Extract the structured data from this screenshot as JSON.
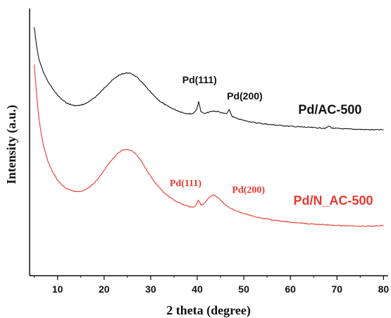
{
  "chart_data": {
    "type": "line",
    "xlabel": "2 theta (degree)",
    "ylabel": "Intensity (a.u.)",
    "xlim": [
      4,
      81
    ],
    "ylim": [
      0,
      100
    ],
    "x_ticks": [
      10,
      20,
      30,
      40,
      50,
      60,
      70,
      80
    ],
    "y_ticks_shown": false,
    "grid": false,
    "colors": {
      "black_series": "#111111",
      "red_series": "#e8392f"
    },
    "series": [
      {
        "name": "Pd/AC-500",
        "color": "#111111",
        "points": [
          [
            5,
            93
          ],
          [
            5.5,
            86
          ],
          [
            6,
            81
          ],
          [
            7,
            76
          ],
          [
            8,
            72.5
          ],
          [
            9,
            69.8
          ],
          [
            10,
            67.6
          ],
          [
            11,
            65.8
          ],
          [
            12,
            64.6
          ],
          [
            13,
            63.9
          ],
          [
            14,
            63.6
          ],
          [
            15,
            63.8
          ],
          [
            16,
            64.4
          ],
          [
            17,
            65.4
          ],
          [
            18,
            66.7
          ],
          [
            19,
            68.3
          ],
          [
            20,
            70.1
          ],
          [
            21,
            71.9
          ],
          [
            22,
            73.5
          ],
          [
            23,
            74.8
          ],
          [
            24,
            75.6
          ],
          [
            25,
            75.9
          ],
          [
            26,
            75.5
          ],
          [
            27,
            74.3
          ],
          [
            28,
            72.6
          ],
          [
            29,
            70.6
          ],
          [
            30,
            68.6
          ],
          [
            31,
            66.8
          ],
          [
            32,
            65.3
          ],
          [
            33,
            64.1
          ],
          [
            34,
            63.1
          ],
          [
            35,
            62.3
          ],
          [
            36,
            61.6
          ],
          [
            37,
            61.0
          ],
          [
            38,
            60.6
          ],
          [
            39,
            60.6
          ],
          [
            39.8,
            62.0
          ],
          [
            40.3,
            65.0
          ],
          [
            40.8,
            61.5
          ],
          [
            41.5,
            60.6
          ],
          [
            42.5,
            61.2
          ],
          [
            43.5,
            61.6
          ],
          [
            44.5,
            61.4
          ],
          [
            45.5,
            60.8
          ],
          [
            46.3,
            60.6
          ],
          [
            46.9,
            62.0
          ],
          [
            47.5,
            59.6
          ],
          [
            48.5,
            58.8
          ],
          [
            50,
            58.1
          ],
          [
            52,
            57.4
          ],
          [
            54,
            56.9
          ],
          [
            56,
            56.5
          ],
          [
            58,
            56.2
          ],
          [
            60,
            55.9
          ],
          [
            62,
            55.7
          ],
          [
            64,
            55.5
          ],
          [
            66,
            55.3
          ],
          [
            67.6,
            55.2
          ],
          [
            68.3,
            56.0
          ],
          [
            69,
            55.2
          ],
          [
            70,
            55.1
          ],
          [
            72,
            54.9
          ],
          [
            74,
            54.8
          ],
          [
            76,
            54.7
          ],
          [
            78,
            54.6
          ],
          [
            80,
            54.6
          ]
        ]
      },
      {
        "name": "Pd/N_AC-500",
        "color": "#e8392f",
        "points": [
          [
            5,
            79
          ],
          [
            5.5,
            68
          ],
          [
            6,
            59
          ],
          [
            6.5,
            53
          ],
          [
            7,
            48.5
          ],
          [
            8,
            42.5
          ],
          [
            9,
            38.6
          ],
          [
            10,
            35.8
          ],
          [
            11,
            33.8
          ],
          [
            12,
            32.5
          ],
          [
            13,
            31.8
          ],
          [
            14,
            31.5
          ],
          [
            15,
            31.6
          ],
          [
            16,
            32.2
          ],
          [
            17,
            33.3
          ],
          [
            18,
            34.9
          ],
          [
            19,
            37.0
          ],
          [
            20,
            39.4
          ],
          [
            21,
            41.9
          ],
          [
            22,
            44.1
          ],
          [
            23,
            45.9
          ],
          [
            24,
            47.0
          ],
          [
            25,
            47.3
          ],
          [
            26,
            46.8
          ],
          [
            27,
            45.2
          ],
          [
            28,
            42.8
          ],
          [
            29,
            40.0
          ],
          [
            30,
            37.2
          ],
          [
            31,
            34.7
          ],
          [
            32,
            32.6
          ],
          [
            33,
            30.8
          ],
          [
            34,
            29.4
          ],
          [
            35,
            28.3
          ],
          [
            36,
            27.4
          ],
          [
            37,
            26.6
          ],
          [
            38,
            26.0
          ],
          [
            39,
            25.6
          ],
          [
            39.6,
            26.0
          ],
          [
            40.2,
            28.3
          ],
          [
            40.8,
            26.4
          ],
          [
            41.5,
            27.0
          ],
          [
            42.5,
            29.2
          ],
          [
            43.3,
            30.2
          ],
          [
            44,
            29.9
          ],
          [
            45,
            28.2
          ],
          [
            46,
            26.6
          ],
          [
            47,
            25.4
          ],
          [
            48,
            24.5
          ],
          [
            50,
            23.3
          ],
          [
            52,
            22.3
          ],
          [
            54,
            21.5
          ],
          [
            56,
            20.9
          ],
          [
            58,
            20.4
          ],
          [
            60,
            20.0
          ],
          [
            62,
            19.7
          ],
          [
            64,
            19.4
          ],
          [
            66,
            19.2
          ],
          [
            68,
            19.0
          ],
          [
            70,
            18.8
          ],
          [
            72,
            18.7
          ],
          [
            74,
            18.6
          ],
          [
            76,
            18.5
          ],
          [
            78,
            18.6
          ],
          [
            80,
            18.9
          ]
        ]
      }
    ],
    "annotations": [
      {
        "text": "Pd(111)",
        "series": "Pd/AC-500",
        "x": 40.5,
        "y": 72,
        "color": "#111111"
      },
      {
        "text": "Pd(200)",
        "series": "Pd/AC-500",
        "x": 50.2,
        "y": 66,
        "color": "#111111"
      },
      {
        "text": "Pd/AC-500",
        "series": "Pd/AC-500",
        "x": 68.5,
        "y": 60.5,
        "color": "#111111",
        "large": true
      },
      {
        "text": "Pd(111)",
        "series": "Pd/N_AC-500",
        "x": 37.5,
        "y": 33.5,
        "color": "#e8392f"
      },
      {
        "text": "Pd(200)",
        "series": "Pd/N_AC-500",
        "x": 51.0,
        "y": 31,
        "color": "#e8392f"
      },
      {
        "text": "Pd/N_AC-500",
        "series": "Pd/N_AC-500",
        "x": 69.2,
        "y": 26.5,
        "color": "#e8392f",
        "large": true
      }
    ]
  }
}
